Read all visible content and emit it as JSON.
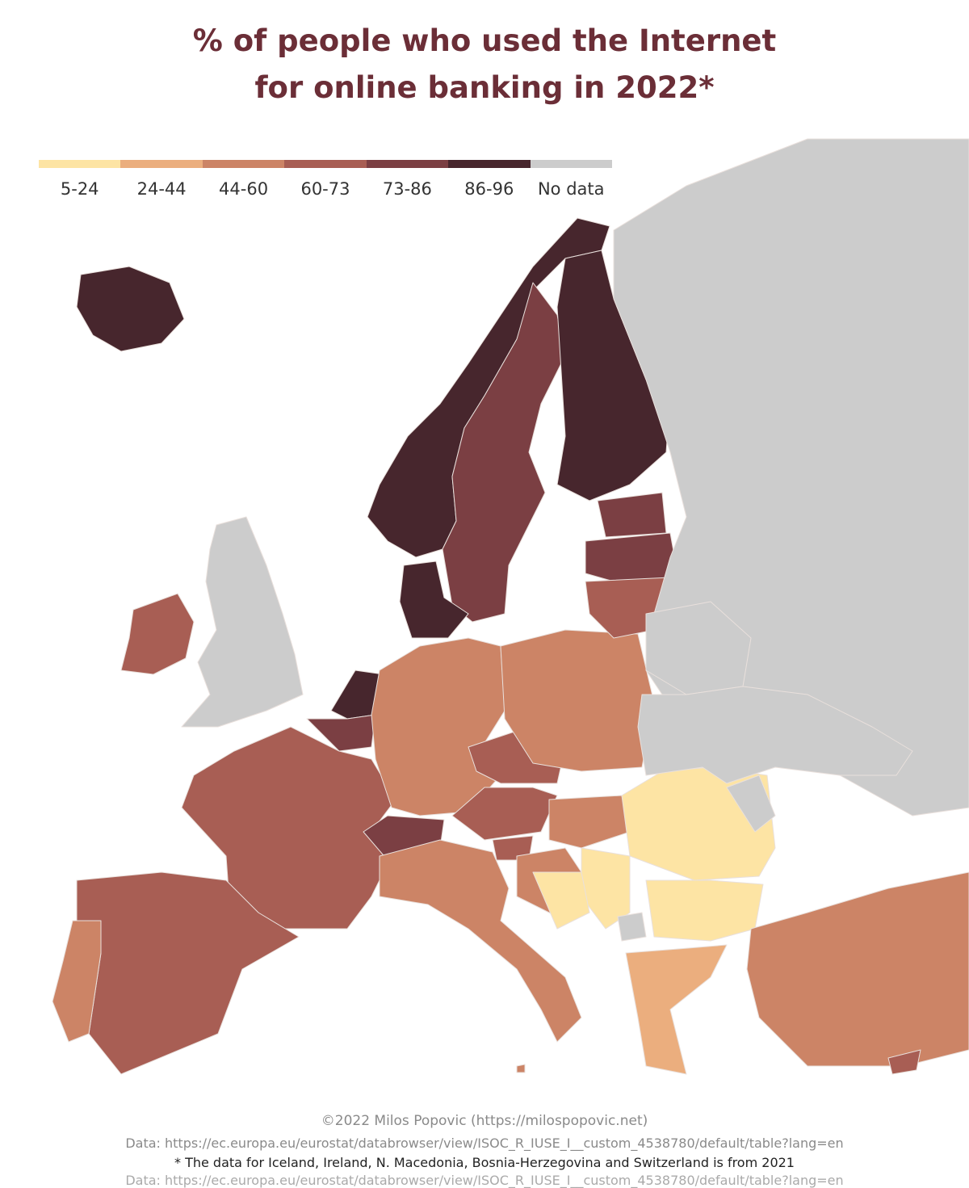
{
  "title": {
    "line1": "% of people who used the Internet",
    "line2": "for online banking in 2022*"
  },
  "legend": {
    "items": [
      {
        "label": "5-24",
        "color": "#fde4a4"
      },
      {
        "label": "24-44",
        "color": "#ebae7e"
      },
      {
        "label": "44-60",
        "color": "#cc8466"
      },
      {
        "label": "60-73",
        "color": "#a85e54"
      },
      {
        "label": "73-86",
        "color": "#7b3f43"
      },
      {
        "label": "86-96",
        "color": "#47262d"
      },
      {
        "label": "No data",
        "color": "#cccccc"
      }
    ]
  },
  "map": {
    "background": "#ffffff",
    "border_color": "#e9e0dc",
    "regions": [
      {
        "name": "Iceland",
        "class": "86-96"
      },
      {
        "name": "Norway",
        "class": "86-96"
      },
      {
        "name": "Sweden",
        "class": "73-86"
      },
      {
        "name": "Finland",
        "class": "86-96"
      },
      {
        "name": "Denmark",
        "class": "86-96"
      },
      {
        "name": "Netherlands",
        "class": "86-96"
      },
      {
        "name": "Belgium",
        "class": "73-86"
      },
      {
        "name": "Ireland",
        "class": "60-73"
      },
      {
        "name": "United Kingdom",
        "class": "No data"
      },
      {
        "name": "France",
        "class": "60-73"
      },
      {
        "name": "Spain",
        "class": "60-73"
      },
      {
        "name": "Portugal",
        "class": "44-60"
      },
      {
        "name": "Germany",
        "class": "44-60"
      },
      {
        "name": "Switzerland",
        "class": "73-86"
      },
      {
        "name": "Austria",
        "class": "60-73"
      },
      {
        "name": "Czechia",
        "class": "60-73"
      },
      {
        "name": "Poland",
        "class": "44-60"
      },
      {
        "name": "Italy",
        "class": "44-60"
      },
      {
        "name": "Slovenia",
        "class": "60-73"
      },
      {
        "name": "Croatia",
        "class": "44-60"
      },
      {
        "name": "Hungary",
        "class": "44-60"
      },
      {
        "name": "Romania",
        "class": "5-24"
      },
      {
        "name": "Bulgaria",
        "class": "5-24"
      },
      {
        "name": "Serbia",
        "class": "5-24"
      },
      {
        "name": "Bosnia-Herzegovina",
        "class": "5-24"
      },
      {
        "name": "Greece",
        "class": "24-44"
      },
      {
        "name": "Turkey",
        "class": "44-60"
      },
      {
        "name": "Cyprus",
        "class": "60-73"
      },
      {
        "name": "Estonia",
        "class": "73-86"
      },
      {
        "name": "Latvia",
        "class": "73-86"
      },
      {
        "name": "Lithuania",
        "class": "60-73"
      },
      {
        "name": "Russia",
        "class": "No data"
      },
      {
        "name": "Belarus",
        "class": "No data"
      },
      {
        "name": "Ukraine",
        "class": "No data"
      },
      {
        "name": "Moldova",
        "class": "No data"
      },
      {
        "name": "Kosovo",
        "class": "No data"
      },
      {
        "name": "Malta",
        "class": "44-60"
      }
    ]
  },
  "footer": {
    "credit": "©2022 Milos Popovic (https://milospopovic.net)",
    "source": "Data: https://ec.europa.eu/eurostat/databrowser/view/ISOC_R_IUSE_I__custom_4538780/default/table?lang=en",
    "note": "* The data for Iceland, Ireland, N. Macedonia, Bosnia-Herzegovina and Switzerland is from 2021",
    "cut": "Data: https://ec.europa.eu/eurostat/databrowser/view/ISOC_R_IUSE_I__custom_4538780/default/table?lang=en"
  }
}
